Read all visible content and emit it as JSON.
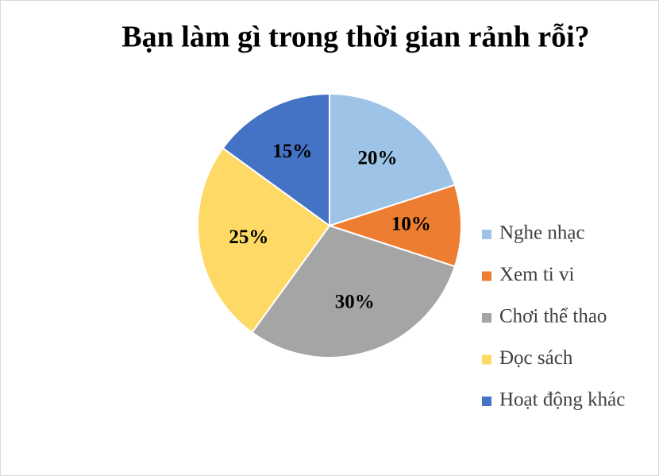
{
  "chart_data": {
    "type": "pie",
    "title": "Bạn làm gì trong thời gian rảnh rỗi?",
    "categories": [
      "Nghe nhạc",
      "Xem ti vi",
      "Chơi thể thao",
      "Đọc sách",
      "Hoạt động khác"
    ],
    "values": [
      20,
      10,
      30,
      25,
      15
    ],
    "value_labels": [
      "20%",
      "10%",
      "30%",
      "25%",
      "15%"
    ],
    "colors": [
      "#9dc3e6",
      "#ed7d31",
      "#a5a5a5",
      "#ffd966",
      "#4472c4"
    ],
    "legend": "right"
  }
}
